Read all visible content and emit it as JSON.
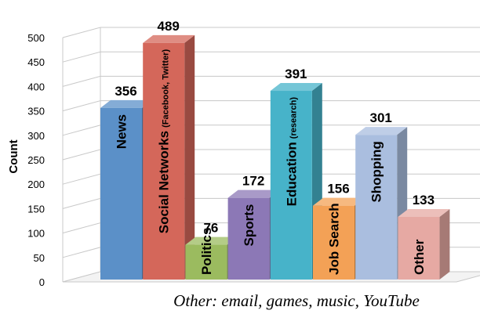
{
  "chart_data": {
    "type": "bar",
    "categories": [
      "News",
      "Social Networks",
      "Politics",
      "Sports",
      "Education",
      "Job Search",
      "Shopping",
      "Other"
    ],
    "category_notes": [
      "",
      "(Facebook, Twitter)",
      "",
      "",
      "(research)",
      "",
      "",
      ""
    ],
    "values": [
      356,
      489,
      76,
      172,
      391,
      156,
      301,
      133
    ],
    "colors": [
      "#5b90c8",
      "#d4675a",
      "#9bbb5f",
      "#8c78b6",
      "#47b3c9",
      "#f3a156",
      "#aabedf",
      "#e6a9a3"
    ],
    "ylabel": "Count",
    "ylim": [
      0,
      500
    ],
    "yticks": [
      0,
      50,
      100,
      150,
      200,
      250,
      300,
      350,
      400,
      450,
      500
    ],
    "grid": true,
    "footnote": "Other: email, games, music, YouTube"
  }
}
